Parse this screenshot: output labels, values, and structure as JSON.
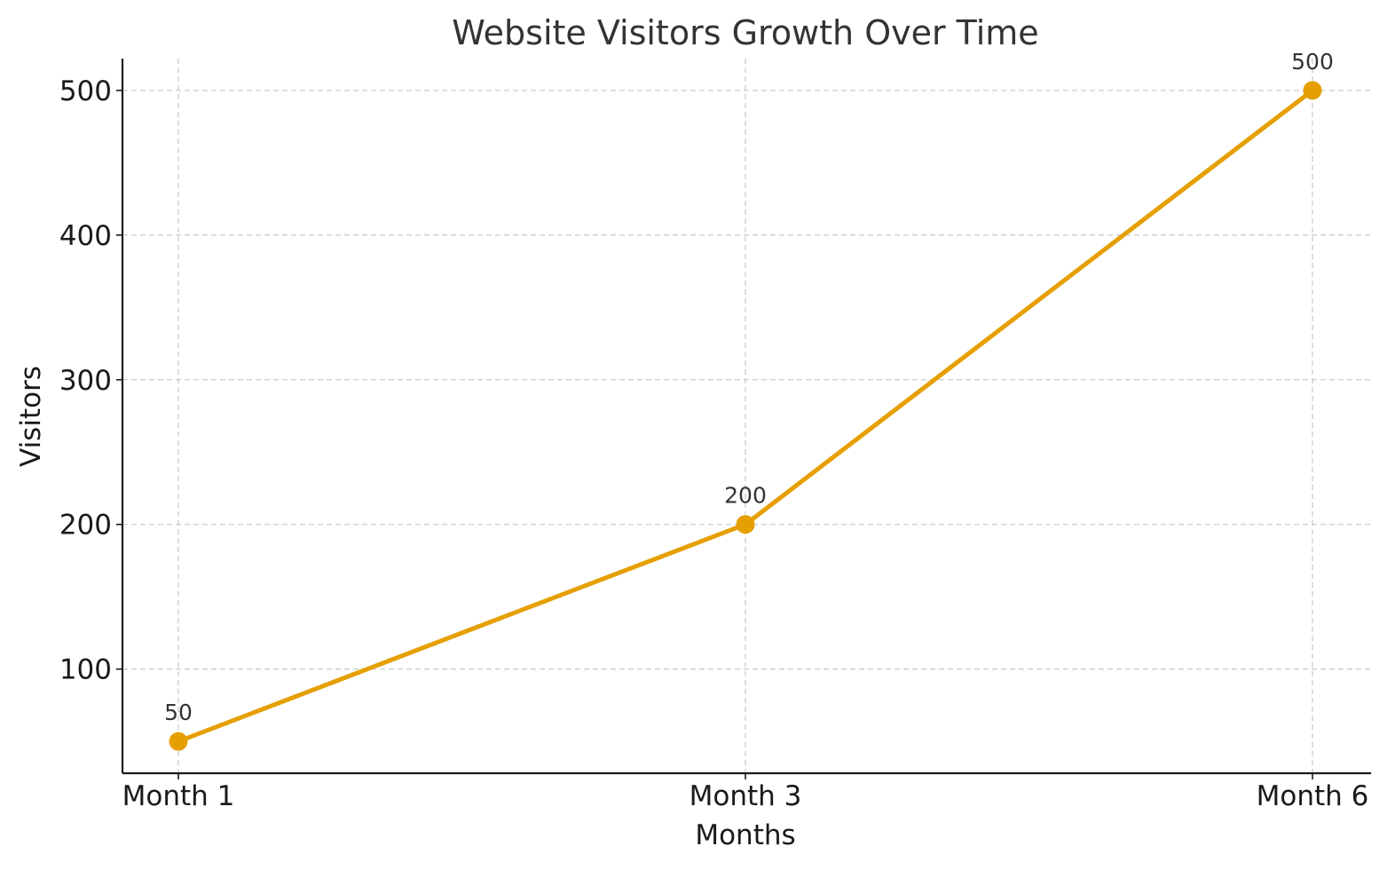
{
  "chart_data": {
    "type": "line",
    "title": "Website Visitors Growth Over Time",
    "xlabel": "Months",
    "ylabel": "Visitors",
    "categories": [
      "Month 1",
      "Month 3",
      "Month 6"
    ],
    "series": [
      {
        "values": [
          50,
          200,
          500
        ],
        "color": "#e69f00",
        "marker": "circle"
      }
    ],
    "data_labels": [
      "50",
      "200",
      "500"
    ],
    "ylim": [
      28,
      522
    ],
    "yticks": [
      100,
      200,
      300,
      400,
      500
    ],
    "grid": true,
    "grid_style": "dashed"
  }
}
